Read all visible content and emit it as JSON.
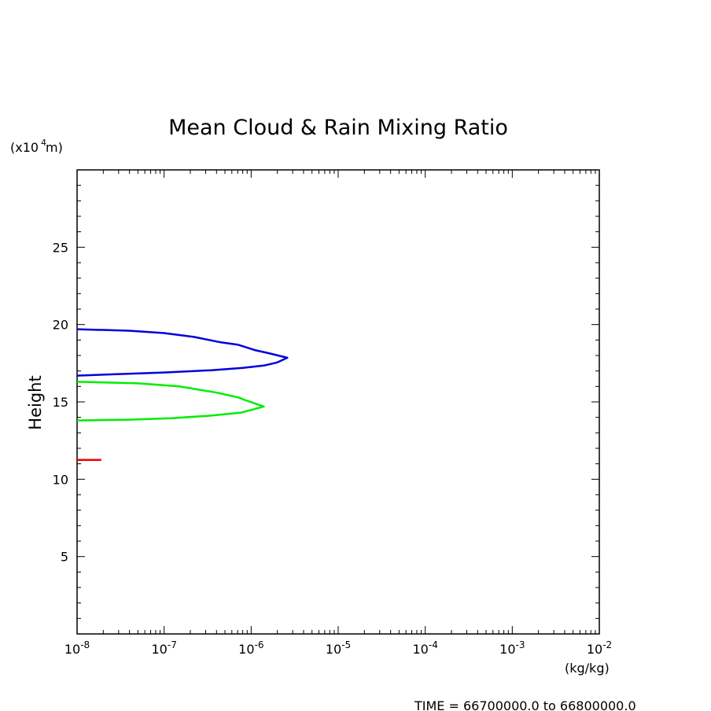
{
  "chart_data": {
    "type": "line",
    "title": "Mean Cloud & Rain Mixing Ratio",
    "ylabel": "Height",
    "y_unit_label": "(x10",
    "y_unit_exp": "4",
    "y_unit_suffix": " m)",
    "xlabel": "(kg/kg)",
    "x_scale": "log",
    "xlim": [
      1e-08,
      0.01
    ],
    "ylim": [
      0,
      30
    ],
    "x_ticks": [
      {
        "value": 1e-08,
        "base": "10",
        "exp": "-8"
      },
      {
        "value": 1e-07,
        "base": "10",
        "exp": "-7"
      },
      {
        "value": 1e-06,
        "base": "10",
        "exp": "-6"
      },
      {
        "value": 1e-05,
        "base": "10",
        "exp": "-5"
      },
      {
        "value": 0.0001,
        "base": "10",
        "exp": "-4"
      },
      {
        "value": 0.001,
        "base": "10",
        "exp": "-3"
      },
      {
        "value": 0.01,
        "base": "10",
        "exp": "-2"
      }
    ],
    "y_ticks": [
      {
        "value": 5,
        "label": "5"
      },
      {
        "value": 10,
        "label": "10"
      },
      {
        "value": 15,
        "label": "15"
      },
      {
        "value": 20,
        "label": "20"
      },
      {
        "value": 25,
        "label": "25"
      }
    ],
    "series": [
      {
        "color": "#0000dd",
        "points": [
          [
            1e-08,
            19.7
          ],
          [
            4e-08,
            19.6
          ],
          [
            1e-07,
            19.45
          ],
          [
            2.2e-07,
            19.2
          ],
          [
            4.5e-07,
            18.85
          ],
          [
            7e-07,
            18.7
          ],
          [
            1.1e-06,
            18.35
          ],
          [
            1.6e-06,
            18.15
          ],
          [
            2.6e-06,
            17.85
          ],
          [
            2e-06,
            17.55
          ],
          [
            1.4e-06,
            17.35
          ],
          [
            8e-07,
            17.2
          ],
          [
            3.5e-07,
            17.05
          ],
          [
            1e-07,
            16.9
          ],
          [
            1e-08,
            16.7
          ]
        ]
      },
      {
        "color": "#00ee00",
        "points": [
          [
            1e-08,
            16.3
          ],
          [
            5e-08,
            16.2
          ],
          [
            1.5e-07,
            16.0
          ],
          [
            4e-07,
            15.6
          ],
          [
            7e-07,
            15.3
          ],
          [
            8.7e-07,
            15.1
          ],
          [
            1.4e-06,
            14.7
          ],
          [
            7.5e-07,
            14.3
          ],
          [
            3.2e-07,
            14.1
          ],
          [
            1.2e-07,
            13.95
          ],
          [
            4e-08,
            13.85
          ],
          [
            1e-08,
            13.8
          ]
        ]
      },
      {
        "color": "#ee0000",
        "points": [
          [
            1e-08,
            11.25
          ],
          [
            1.9e-08,
            11.25
          ]
        ]
      }
    ]
  },
  "footer": {
    "time_label": "TIME = 66700000.0 to 66800000.0"
  }
}
